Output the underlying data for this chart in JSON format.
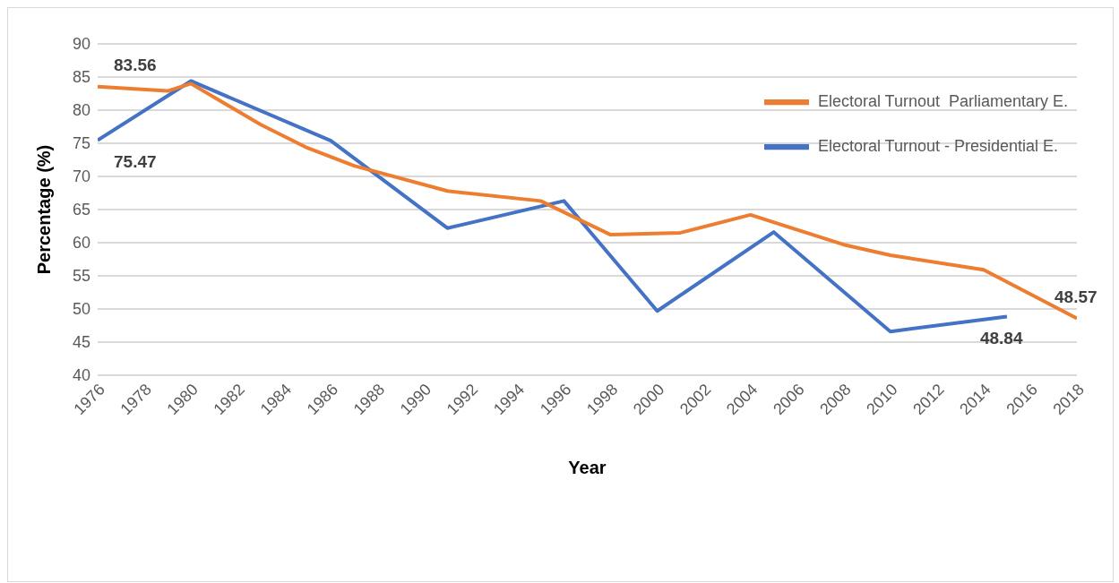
{
  "chart_data": {
    "type": "line",
    "xlabel": "Year",
    "ylabel": "Percentage (%)",
    "series": [
      {
        "name": "Electoral Turnout - Presidential E.",
        "color": "#4472c4",
        "x": [
          1976,
          1980,
          1986,
          1991,
          1996,
          2000,
          2005,
          2010,
          2015
        ],
        "values": [
          75.47,
          84.4,
          75.4,
          62.2,
          66.3,
          49.7,
          61.6,
          46.6,
          48.84
        ],
        "value_labels": [
          "75.47",
          null,
          null,
          null,
          null,
          null,
          null,
          null,
          "48.84"
        ]
      },
      {
        "name": "Electoral Turnout  Parliamentary E.",
        "color": "#ed7d31",
        "x": [
          1976,
          1979,
          1980,
          1983,
          1985,
          1987,
          1991,
          1995,
          1998,
          2001,
          2004,
          2008,
          2010,
          2014,
          2018
        ],
        "values": [
          83.56,
          82.9,
          84.0,
          77.8,
          74.3,
          71.6,
          67.8,
          66.3,
          61.2,
          61.5,
          64.2,
          59.7,
          58.1,
          55.9,
          48.57
        ],
        "value_labels": [
          "83.56",
          null,
          null,
          null,
          null,
          null,
          null,
          null,
          null,
          null,
          null,
          null,
          null,
          null,
          "48.57"
        ]
      }
    ],
    "xlim": [
      1976,
      2018
    ],
    "xticks": [
      1976,
      1978,
      1980,
      1982,
      1984,
      1986,
      1988,
      1990,
      1992,
      1994,
      1996,
      1998,
      2000,
      2002,
      2004,
      2006,
      2008,
      2010,
      2012,
      2014,
      2016,
      2018
    ],
    "ylim": [
      40,
      90
    ],
    "yticks": [
      40,
      45,
      50,
      55,
      60,
      65,
      70,
      75,
      80,
      85,
      90
    ],
    "grid": "y",
    "legend": "top right",
    "marker": "none",
    "line_style": "solid"
  }
}
